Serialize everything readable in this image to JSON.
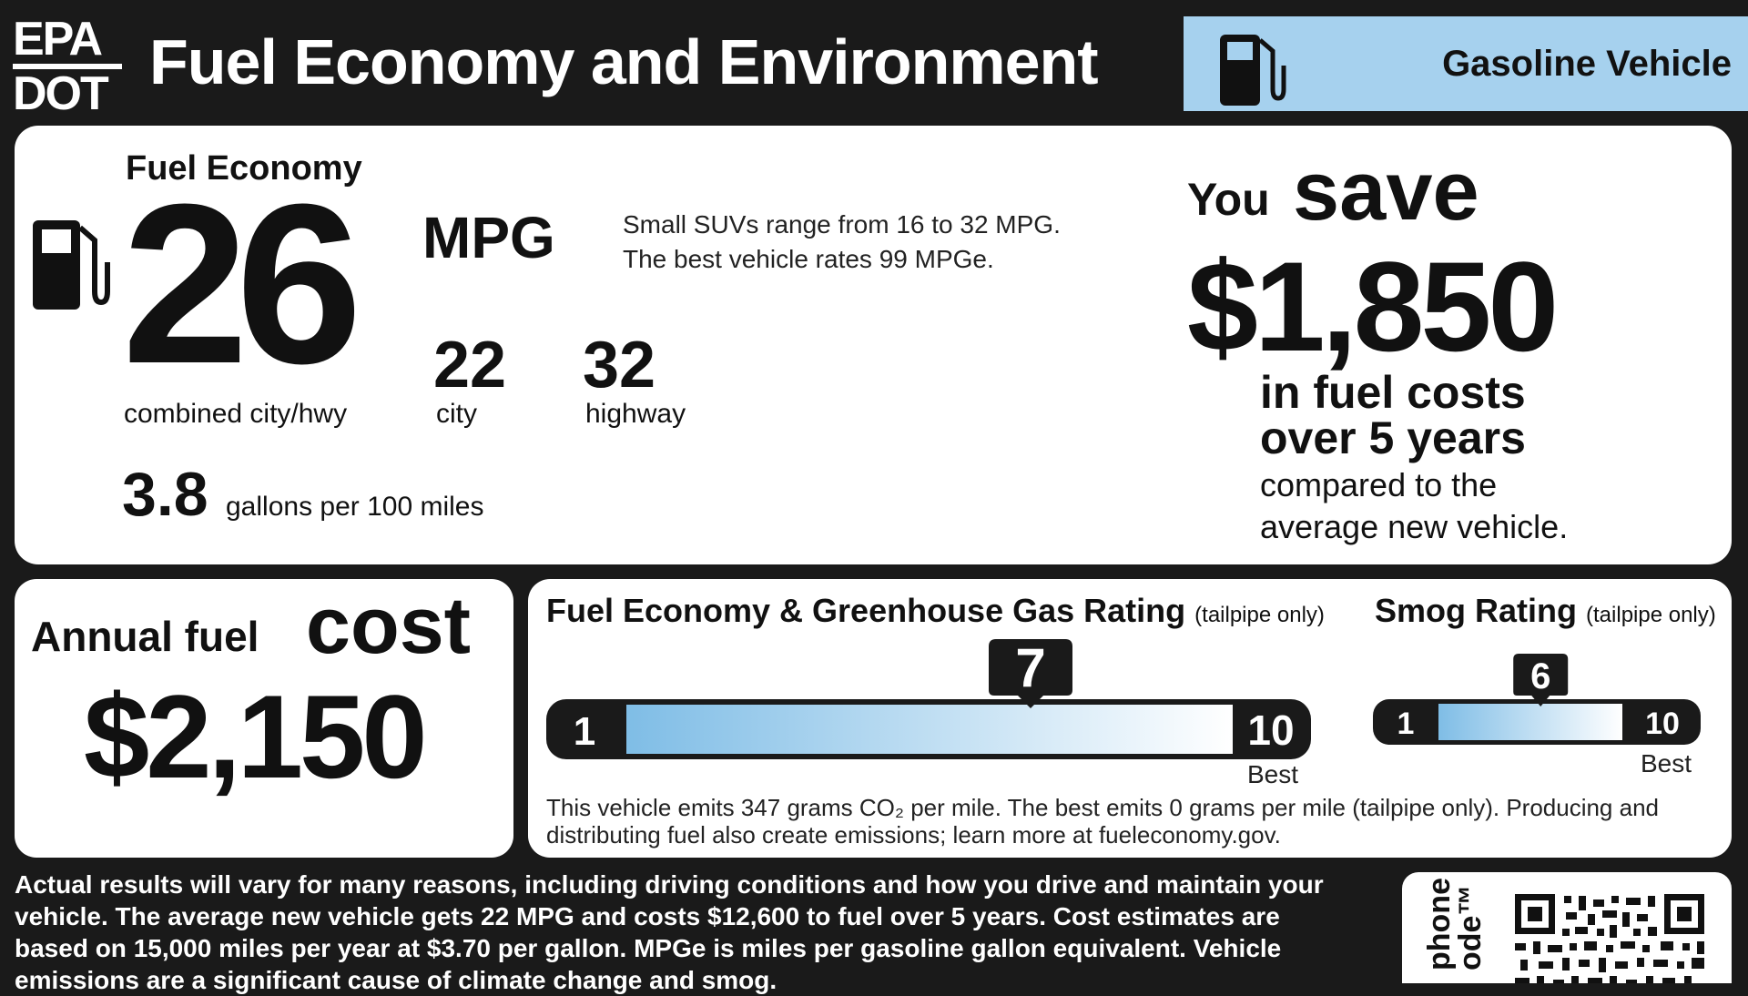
{
  "header": {
    "agency_line1": "EPA",
    "agency_line2": "DOT",
    "title": "Fuel Economy and Environment",
    "vehicle_type": "Gasoline Vehicle",
    "pump_icon": "fuel-pump-icon"
  },
  "fuel_economy": {
    "heading": "Fuel Economy",
    "combined": "26",
    "unit": "MPG",
    "combined_label": "combined city/hwy",
    "city": "22",
    "city_label": "city",
    "highway": "32",
    "highway_label": "highway",
    "gallons": "3.8",
    "gallons_label": "gallons per 100 miles",
    "range_line1": "Small SUVs range from 16 to 32 MPG.",
    "range_line2": "The best vehicle rates 99 MPGe."
  },
  "savings": {
    "you": "You",
    "save": "save",
    "amount": "$1,850",
    "line1": "in fuel costs",
    "line2": "over 5 years",
    "line3": "compared to the",
    "line4": "average new vehicle."
  },
  "annual": {
    "label": "Annual fuel",
    "cost": "cost",
    "amount": "$2,150"
  },
  "ratings": {
    "greenhouse_title": "Fuel Economy & Greenhouse Gas Rating",
    "smog_title": "Smog Rating",
    "tailpipe_note": "(tailpipe only)",
    "greenhouse": {
      "min": "1",
      "max": "10",
      "value": 7,
      "best": "Best"
    },
    "smog": {
      "min": "1",
      "max": "10",
      "value": 6,
      "best": "Best"
    },
    "emissions_line1": "This vehicle emits 347 grams CO₂ per mile. The best emits 0 grams per mile (tailpipe only). Producing and",
    "emissions_line2": "distributing fuel also create emissions; learn more at fueleconomy.gov."
  },
  "footer": {
    "line1": "Actual results will vary for many reasons, including driving conditions and how you drive and maintain your",
    "line2": "vehicle. The average new vehicle gets 22 MPG and costs $12,600 to fuel over 5 years. Cost estimates are",
    "line3": "based on 15,000 miles per year at $3.70 per gallon. MPGe is miles per gasoline gallon equivalent. Vehicle",
    "line4": "emissions are a significant cause of climate change and smog.",
    "qr_side_1": "phone",
    "qr_side_2": "ode™"
  },
  "colors": {
    "accent_blue": "#a6d1ee",
    "dark": "#1a1a1a"
  }
}
